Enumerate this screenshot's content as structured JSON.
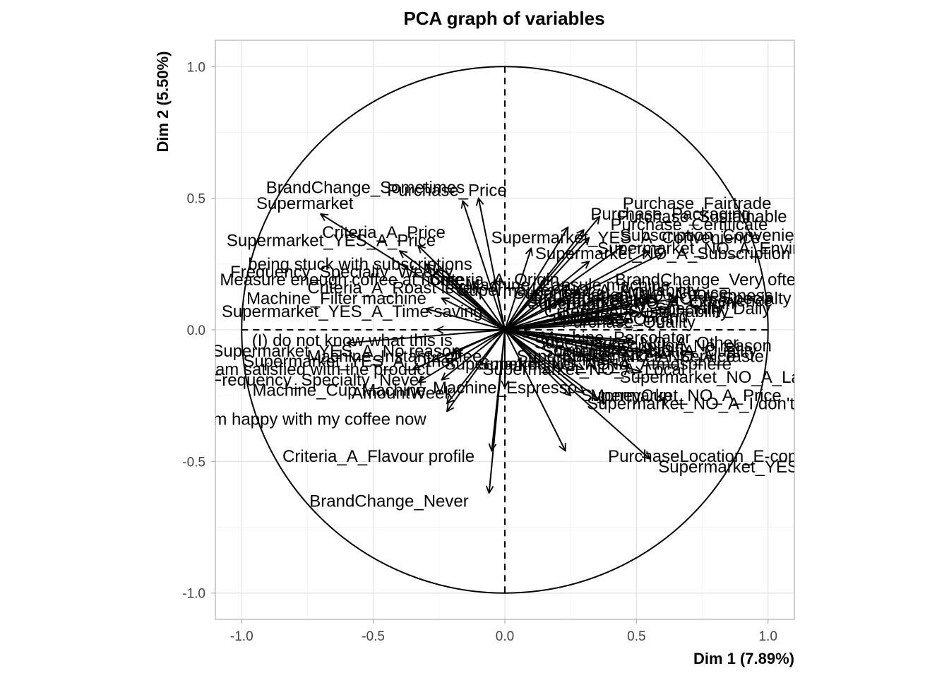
{
  "chart_data": {
    "type": "scatter",
    "subtype": "pca-variable-correlation-circle",
    "title": "PCA graph of variables",
    "xlabel": "Dim 1 (7.89%)",
    "ylabel": "Dim 2 (5.50%)",
    "xlim": [
      -1.1,
      1.1
    ],
    "ylim": [
      -1.1,
      1.1
    ],
    "x_ticks": [
      "-1.0",
      "-0.5",
      "0.0",
      "0.5",
      "1.0"
    ],
    "y_ticks": [
      "-1.0",
      "-0.5",
      "0.0",
      "0.5",
      "1.0"
    ],
    "grid": true,
    "unit_circle": true,
    "variables": [
      {
        "name": "BrandChange_Sometimes",
        "x": -0.16,
        "y": 0.49,
        "lx": -0.53,
        "ly": 0.54
      },
      {
        "name": "Purchase_Price",
        "x": -0.1,
        "y": 0.5,
        "lx": -0.22,
        "ly": 0.53
      },
      {
        "name": "Supermarket",
        "x": -0.7,
        "y": 0.44,
        "lx": -0.76,
        "ly": 0.48
      },
      {
        "name": "Criteria_A_Price",
        "x": -0.33,
        "y": 0.32,
        "lx": -0.46,
        "ly": 0.37
      },
      {
        "name": "Supermarket_YES_A_Price",
        "x": -0.4,
        "y": 0.3,
        "lx": -0.66,
        "ly": 0.34
      },
      {
        "name": "being stuck with subscriptions",
        "x": -0.3,
        "y": 0.25,
        "lx": -0.55,
        "ly": 0.25
      },
      {
        "name": "Frequency_Specialty_Weekly",
        "x": -0.26,
        "y": 0.23,
        "lx": -0.62,
        "ly": 0.22
      },
      {
        "name": "Measure enough coffee at home",
        "x": -0.22,
        "y": 0.2,
        "lx": -0.62,
        "ly": 0.19
      },
      {
        "name": "Criteria_A_Roast level",
        "x": -0.12,
        "y": 0.17,
        "lx": -0.43,
        "ly": 0.16
      },
      {
        "name": "Machine_Filter machine",
        "x": -0.24,
        "y": 0.12,
        "lx": -0.64,
        "ly": 0.12
      },
      {
        "name": "Supermarket_YES_A_Time saving",
        "x": -0.3,
        "y": 0.08,
        "lx": -0.58,
        "ly": 0.07
      },
      {
        "name": "Criteria_A_Origin",
        "x": -0.04,
        "y": 0.19,
        "lx": -0.04,
        "ly": 0.19
      },
      {
        "name": "(I) do not know what this is",
        "x": -0.26,
        "y": 0.0,
        "lx": -0.58,
        "ly": -0.04
      },
      {
        "name": "Supermarket_YES_A_No reason",
        "x": -0.6,
        "y": -0.05,
        "lx": -0.64,
        "ly": -0.08
      },
      {
        "name": "Machine_Instant coffee",
        "x": -0.2,
        "y": -0.09,
        "lx": -0.42,
        "ly": -0.1
      },
      {
        "name": "Supermarket_YES_A_Other",
        "x": -0.28,
        "y": -0.12,
        "lx": -0.59,
        "ly": -0.12
      },
      {
        "name": "I am satisfied with the product",
        "x": -0.35,
        "y": -0.15,
        "lx": -0.71,
        "ly": -0.15
      },
      {
        "name": "Frequency_Specialty_Never",
        "x": -0.24,
        "y": -0.19,
        "lx": -0.71,
        "ly": -0.19
      },
      {
        "name": "Machine_Cup Machine",
        "x": -0.33,
        "y": -0.2,
        "lx": -0.63,
        "ly": -0.23
      },
      {
        "name": "AmountWeek",
        "x": -0.22,
        "y": -0.28,
        "lx": -0.39,
        "ly": -0.24
      },
      {
        "name": "I am happy with my coffee now",
        "x": -0.22,
        "y": -0.31,
        "lx": -0.74,
        "ly": -0.34
      },
      {
        "name": "Criteria_A_Flavour profile",
        "x": -0.05,
        "y": -0.46,
        "lx": -0.48,
        "ly": -0.48
      },
      {
        "name": "BrandChange_Never",
        "x": -0.06,
        "y": -0.62,
        "lx": -0.44,
        "ly": -0.65
      },
      {
        "name": "Machine_Espresso",
        "x": 0.0,
        "y": -0.22,
        "lx": 0.0,
        "ly": -0.22
      },
      {
        "name": "Purchase_Fairtrade",
        "x": 0.36,
        "y": 0.43,
        "lx": 0.73,
        "ly": 0.48
      },
      {
        "name": "Purchase_Packaging",
        "x": 0.24,
        "y": 0.39,
        "lx": 0.63,
        "ly": 0.44
      },
      {
        "name": "Purchase_Sustainable",
        "x": 0.3,
        "y": 0.38,
        "lx": 0.75,
        "ly": 0.43
      },
      {
        "name": "Purchase_Certificate",
        "x": 0.32,
        "y": 0.35,
        "lx": 0.7,
        "ly": 0.4
      },
      {
        "name": "Supermarket_YES_A_Convenience",
        "x": 0.1,
        "y": 0.31,
        "lx": 0.46,
        "ly": 0.35
      },
      {
        "name": "Subscription_Convenience",
        "x": 0.45,
        "y": 0.32,
        "lx": 0.82,
        "ly": 0.36
      },
      {
        "name": "Supermarket_NO_A_Environment",
        "x": 0.55,
        "y": 0.3,
        "lx": 0.84,
        "ly": 0.31
      },
      {
        "name": "Supermarket_NO_A_Subscription",
        "x": 0.6,
        "y": 0.29,
        "lx": 0.6,
        "ly": 0.29
      },
      {
        "name": "BrandChange_Very often",
        "x": 0.32,
        "y": 0.26,
        "lx": 0.78,
        "ly": 0.19
      },
      {
        "name": "Machine_Capsule machine",
        "x": 0.24,
        "y": 0.17,
        "lx": 0.24,
        "ly": 0.17
      },
      {
        "name": "Supermarket_NO_A_Availability",
        "x": 0.28,
        "y": 0.15,
        "lx": 0.28,
        "ly": 0.15
      },
      {
        "name": "Supermarket_NO_A_Choice",
        "x": 0.44,
        "y": 0.14,
        "lx": 0.44,
        "ly": 0.14
      },
      {
        "name": "Supermarket_NO_A_Freshness",
        "x": 0.56,
        "y": 0.13,
        "lx": 0.56,
        "ly": 0.13
      },
      {
        "name": "Supermarket_NO_A_Specialty",
        "x": 0.65,
        "y": 0.12,
        "lx": 0.65,
        "ly": 0.12
      },
      {
        "name": "Supermarket_NO_A_Experience",
        "x": 0.55,
        "y": 0.11,
        "lx": 0.55,
        "ly": 0.11
      },
      {
        "name": "Supermarket_NO_A_Origin",
        "x": 0.48,
        "y": 0.1,
        "lx": 0.48,
        "ly": 0.1
      },
      {
        "name": "Frequency_Specialty_Daily",
        "x": 0.62,
        "y": 0.08,
        "lx": 0.62,
        "ly": 0.08
      },
      {
        "name": "Criteria_A_Sustainability",
        "x": 0.5,
        "y": 0.07,
        "lx": 0.5,
        "ly": 0.07
      },
      {
        "name": "Criteria_A_Brand",
        "x": 0.45,
        "y": 0.05,
        "lx": 0.45,
        "ly": 0.05
      },
      {
        "name": "Purchase_Origin",
        "x": 0.42,
        "y": 0.04,
        "lx": 0.42,
        "ly": 0.04
      },
      {
        "name": "Purchase_Quality",
        "x": 0.47,
        "y": 0.03,
        "lx": 0.47,
        "ly": 0.03
      },
      {
        "name": "Machine_Percolator",
        "x": 0.1,
        "y": -0.02,
        "lx": 0.42,
        "ly": -0.03
      },
      {
        "name": "Subscription_No reason",
        "x": 0.48,
        "y": -0.04,
        "lx": 0.67,
        "ly": -0.06
      },
      {
        "name": "Supermarket_NO_A_Other",
        "x": 0.5,
        "y": -0.05,
        "lx": 0.5,
        "ly": -0.05
      },
      {
        "name": "Criteria_A_Acidity",
        "x": 0.44,
        "y": -0.08,
        "lx": 0.44,
        "ly": -0.08
      },
      {
        "name": "Supermarket_NO_A_Quality",
        "x": 0.55,
        "y": -0.08,
        "lx": 0.55,
        "ly": -0.08
      },
      {
        "name": "Supermarket_NO_A_Taste",
        "x": 0.6,
        "y": -0.1,
        "lx": 0.6,
        "ly": -0.1
      },
      {
        "name": "Supermarket_NO_A_Service",
        "x": 0.46,
        "y": -0.1,
        "lx": 0.46,
        "ly": -0.1
      },
      {
        "name": "Supermarket_NO_A_Lack of choice",
        "x": 0.52,
        "y": -0.16,
        "lx": 0.95,
        "ly": -0.18
      },
      {
        "name": "Supermarket_NO_A_Local",
        "x": 0.3,
        "y": -0.15,
        "lx": 0.3,
        "ly": -0.15
      },
      {
        "name": "Supermarket_NO_A_Atmosphere",
        "x": 0.38,
        "y": -0.13,
        "lx": 0.38,
        "ly": -0.13
      },
      {
        "name": "Supermarket_NO_A_No",
        "x": 0.12,
        "y": -0.13,
        "lx": 0.12,
        "ly": -0.13
      },
      {
        "name": "MoneyCup",
        "x": 0.3,
        "y": -0.24,
        "lx": 0.48,
        "ly": -0.25
      },
      {
        "name": "Supermarket_NO_A_Price",
        "x": 0.25,
        "y": -0.25,
        "lx": 0.67,
        "ly": -0.25
      },
      {
        "name": "Supermarket_NO_A_I don't know",
        "x": 0.38,
        "y": -0.28,
        "lx": 0.79,
        "ly": -0.28
      },
      {
        "name": "PurchaseLocation_E-commerce",
        "x": 0.23,
        "y": -0.46,
        "lx": 0.85,
        "ly": -0.48
      },
      {
        "name": "Supermarket_YES_A_Online",
        "x": 0.55,
        "y": -0.49,
        "lx": 1.0,
        "ly": -0.52
      }
    ]
  }
}
